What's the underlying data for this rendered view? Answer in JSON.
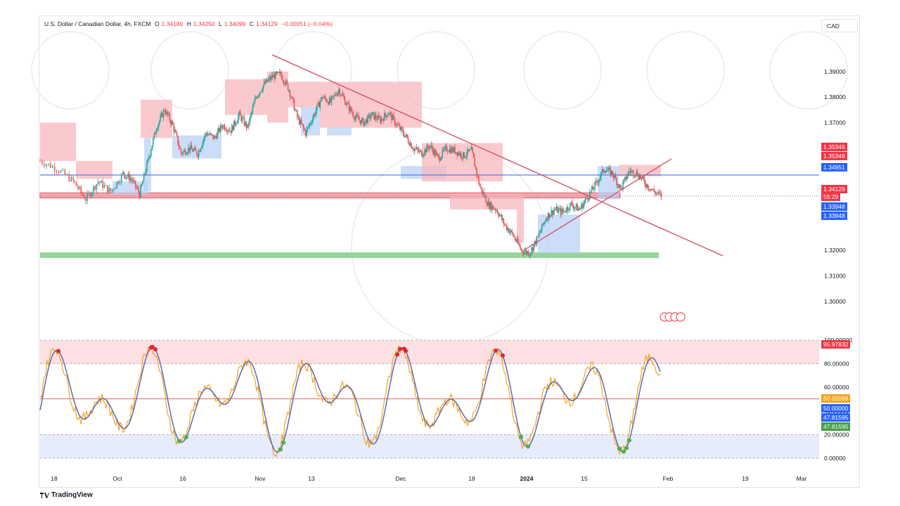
{
  "header": {
    "symbol": "U.S. Dollar / Canadian Dollar, 4h, FXCM",
    "open_label": "O",
    "open": "1.34180",
    "high_label": "H",
    "high": "1.34250",
    "low_label": "L",
    "low": "1.34099",
    "close_label": "C",
    "close": "1.34129",
    "change": "−0.00051 (−0.04%)"
  },
  "currency_button": "CAD",
  "footer": {
    "brand": "TradingView",
    "logo_icon": "tradingview-logo-icon"
  },
  "price_labels": {
    "resistance_high_1": "1.35346",
    "resistance_high_2": "1.35346",
    "blue_line": "1.34951",
    "last_price": "1.34129",
    "countdown": "55:29",
    "support_low_1": "1.33948",
    "support_low_2": "1.33948"
  },
  "osc_labels": {
    "upper": "95.97832",
    "mid_value": "50.32098",
    "mid_line": "50.00000",
    "signal_1": "47.81595",
    "signal_2": "47.81595"
  },
  "colors": {
    "up": "#26a69a",
    "down": "#ef5350",
    "trendline": "#d04a5e",
    "red_zone": "#f8b7bd",
    "blue_zone": "#b9d1f5",
    "green_zone": "#8ccf8f",
    "blue_line": "#2962ff",
    "osc_k": "#f7a21b",
    "osc_d": "#5b6bb5"
  },
  "chart_data": {
    "type": "candlestick",
    "title": "U.S. Dollar / Canadian Dollar, 4h, FXCM",
    "y_axis": {
      "ticks": [
        "1.39000",
        "1.38000",
        "1.37000",
        "1.36000",
        "1.32000",
        "1.31000",
        "1.30000"
      ],
      "range": [
        1.292,
        1.407
      ]
    },
    "x_axis": {
      "ticks": [
        "18",
        "Oct",
        "16",
        "Nov",
        "13",
        "Dec",
        "18",
        "2024",
        "15",
        "Feb",
        "19",
        "Mar"
      ]
    },
    "price_path": [
      [
        0,
        1.355
      ],
      [
        4,
        1.352
      ],
      [
        8,
        1.347
      ],
      [
        11,
        1.34
      ],
      [
        14,
        1.347
      ],
      [
        17,
        1.343
      ],
      [
        20,
        1.35
      ],
      [
        22,
        1.348
      ],
      [
        24,
        1.342
      ],
      [
        26,
        1.355
      ],
      [
        28,
        1.368
      ],
      [
        30,
        1.375
      ],
      [
        32,
        1.369
      ],
      [
        34,
        1.358
      ],
      [
        36,
        1.36
      ],
      [
        38,
        1.358
      ],
      [
        40,
        1.366
      ],
      [
        42,
        1.364
      ],
      [
        44,
        1.369
      ],
      [
        46,
        1.367
      ],
      [
        48,
        1.373
      ],
      [
        50,
        1.368
      ],
      [
        52,
        1.38
      ],
      [
        54,
        1.385
      ],
      [
        56,
        1.388
      ],
      [
        58,
        1.389
      ],
      [
        60,
        1.383
      ],
      [
        62,
        1.372
      ],
      [
        64,
        1.366
      ],
      [
        66,
        1.373
      ],
      [
        68,
        1.38
      ],
      [
        70,
        1.378
      ],
      [
        72,
        1.383
      ],
      [
        74,
        1.377
      ],
      [
        76,
        1.372
      ],
      [
        78,
        1.37
      ],
      [
        80,
        1.373
      ],
      [
        82,
        1.371
      ],
      [
        84,
        1.374
      ],
      [
        86,
        1.369
      ],
      [
        88,
        1.365
      ],
      [
        90,
        1.36
      ],
      [
        92,
        1.358
      ],
      [
        94,
        1.361
      ],
      [
        96,
        1.356
      ],
      [
        98,
        1.36
      ],
      [
        100,
        1.359
      ],
      [
        102,
        1.357
      ],
      [
        104,
        1.359
      ],
      [
        106,
        1.345
      ],
      [
        108,
        1.338
      ],
      [
        110,
        1.336
      ],
      [
        112,
        1.33
      ],
      [
        114,
        1.326
      ],
      [
        116,
        1.32
      ],
      [
        118,
        1.319
      ],
      [
        120,
        1.325
      ],
      [
        122,
        1.333
      ],
      [
        124,
        1.336
      ],
      [
        126,
        1.335
      ],
      [
        128,
        1.338
      ],
      [
        130,
        1.336
      ],
      [
        132,
        1.341
      ],
      [
        134,
        1.346
      ],
      [
        136,
        1.352
      ],
      [
        138,
        1.35
      ],
      [
        140,
        1.344
      ],
      [
        142,
        1.351
      ],
      [
        144,
        1.35
      ],
      [
        146,
        1.346
      ],
      [
        148,
        1.343
      ],
      [
        150,
        1.341
      ]
    ],
    "horizontal_levels": [
      {
        "price": 1.34951,
        "label": "1.34951",
        "color": "blue"
      },
      {
        "price": 1.34129,
        "label": "1.34129",
        "color": "last"
      }
    ],
    "zones": [
      {
        "type": "support",
        "from": 1.3405,
        "to": 1.3425,
        "color": "red"
      },
      {
        "type": "support",
        "from": 1.317,
        "to": 1.3192,
        "color": "green"
      }
    ],
    "oscillator": {
      "type": "stochastic",
      "y_ticks": [
        "100.00000",
        "80.00000",
        "60.00000",
        "40.00000",
        "20.00000",
        "0.00000"
      ],
      "range": [
        0,
        100
      ],
      "overbought": 80,
      "oversold": 20,
      "midline": 50.32098
    }
  }
}
